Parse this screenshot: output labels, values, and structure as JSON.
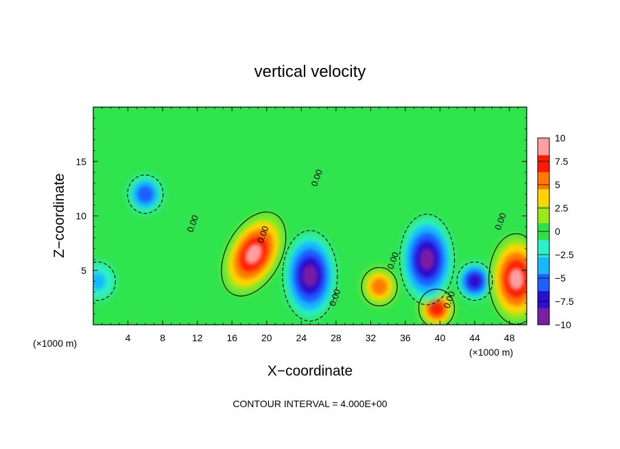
{
  "chart_data": {
    "type": "heatmap",
    "title": "vertical velocity",
    "xlabel": "X−coordinate",
    "ylabel": "Z−coordinate",
    "x_unit_left": "(×1000 m)",
    "x_unit_right": "(×1000 m)",
    "xlim": [
      0,
      50
    ],
    "ylim": [
      0,
      20
    ],
    "x_ticks": [
      4,
      8,
      12,
      16,
      20,
      24,
      28,
      32,
      36,
      40,
      44,
      48
    ],
    "x_tick_labels": [
      "4",
      "8",
      "12",
      "16",
      "20",
      "24",
      "28",
      "32",
      "36",
      "40",
      "44",
      "48"
    ],
    "y_ticks": [
      5,
      10,
      15
    ],
    "y_tick_labels": [
      "5",
      "10",
      "15"
    ],
    "colorbar": {
      "min": -10,
      "max": 10,
      "ticks": [
        10,
        7.5,
        5,
        2.5,
        0,
        -2.5,
        -5,
        -7.5,
        -10
      ],
      "tick_labels": [
        "10",
        "7.5",
        "5",
        "2.5",
        "0",
        "−2.5",
        "−5",
        "−7.5",
        "−10"
      ],
      "colors": [
        "#7a1fa2",
        "#2b0fd0",
        "#1f5fff",
        "#19b9ff",
        "#2ef0c8",
        "#2ee04a",
        "#9ee81a",
        "#ffd400",
        "#ff7a00",
        "#ff1a00",
        "#ff9f9f"
      ]
    },
    "contour_labels": [
      {
        "text": "0.00",
        "x": 11.8,
        "y": 9.2
      },
      {
        "text": "0.00",
        "x": 19.9,
        "y": 8.2
      },
      {
        "text": "0.00",
        "x": 26.1,
        "y": 13.4
      },
      {
        "text": "0.00",
        "x": 28.2,
        "y": 2.4
      },
      {
        "text": "0.00",
        "x": 34.9,
        "y": 5.8
      },
      {
        "text": "0.00",
        "x": 41.4,
        "y": 2.2
      },
      {
        "text": "0.00",
        "x": 47.3,
        "y": 9.4
      }
    ],
    "features": [
      {
        "sign": "positive",
        "peak": 10,
        "x": 18.5,
        "y": 6.5,
        "note": "tilted updraft core"
      },
      {
        "sign": "negative",
        "peak": -5,
        "x": 6,
        "y": 12
      },
      {
        "sign": "negative",
        "peak": -4,
        "x": 0.5,
        "y": 4
      },
      {
        "sign": "negative",
        "peak": -10,
        "x": 25,
        "y": 4.5
      },
      {
        "sign": "positive",
        "peak": 6,
        "x": 33,
        "y": 3.5
      },
      {
        "sign": "positive",
        "peak": 8,
        "x": 39.6,
        "y": 1.5
      },
      {
        "sign": "negative",
        "peak": -9,
        "x": 38.5,
        "y": 6
      },
      {
        "sign": "negative",
        "peak": -7,
        "x": 44,
        "y": 4
      },
      {
        "sign": "positive",
        "peak": 10,
        "x": 48.8,
        "y": 4.2
      }
    ],
    "grid": false,
    "legend": "colorbar right"
  },
  "contour_interval_text": "CONTOUR INTERVAL =  4.000E+00"
}
